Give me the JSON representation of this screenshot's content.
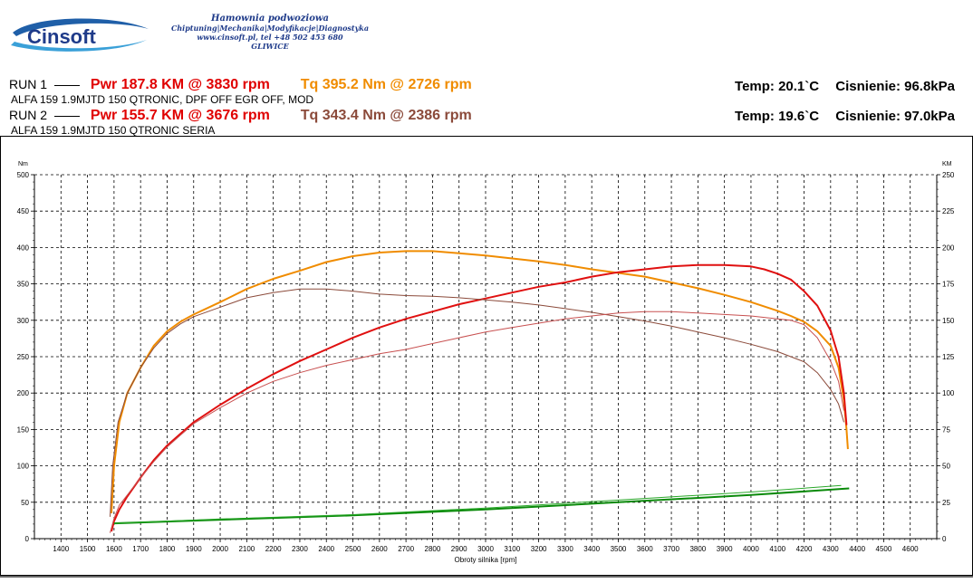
{
  "header": {
    "logo_text": "Cinsoft",
    "company_line1": "Hamownia podwoziowa",
    "company_line2": "Chiptuning|Mechanika|Modyfikacje|Diagnostyka",
    "company_line3": "www.cinsoft.pl, tel +48 502 453 680",
    "company_line4": "GLIWICE"
  },
  "runs": [
    {
      "label": "RUN 1",
      "pwr": "Pwr  187.8 KM @ 3830 rpm",
      "tq": "Tq 395.2 Nm @ 2726 rpm",
      "tq_color": "#f08c00",
      "car": "ALFA 159 1.9MJTD 150 QTRONIC, DPF OFF EGR OFF, MOD",
      "temp": "Temp: 20.1`C",
      "pressure": "Cisnienie: 96.8kPa"
    },
    {
      "label": "RUN 2",
      "pwr": "Pwr  155.7 KM @ 3676 rpm",
      "tq": "Tq 343.4 Nm @ 2386 rpm",
      "tq_color": "#8b4a3a",
      "car": "ALFA 159 1.9MJTD 150 QTRONIC SERIA",
      "temp": "Temp: 19.6`C",
      "pressure": "Cisnienie: 97.0kPa"
    }
  ],
  "chart_data": {
    "type": "line",
    "xlabel": "Obroty silnika [rpm]",
    "ylabel": "Nm",
    "y2label": "KM",
    "xlim": [
      1300,
      4700
    ],
    "ylim": [
      0,
      500
    ],
    "y2lim": [
      0,
      250
    ],
    "x_ticks": [
      1400,
      1500,
      1600,
      1700,
      1800,
      1900,
      2000,
      2100,
      2200,
      2300,
      2400,
      2500,
      2600,
      2700,
      2800,
      2900,
      3000,
      3100,
      3200,
      3300,
      3400,
      3500,
      3600,
      3700,
      3800,
      3900,
      4000,
      4100,
      4200,
      4300,
      4400,
      4500,
      4600
    ],
    "y_ticks": [
      0,
      50,
      100,
      150,
      200,
      250,
      300,
      350,
      400,
      450,
      500
    ],
    "y2_ticks": [
      0,
      25,
      50,
      75,
      100,
      125,
      150,
      175,
      200,
      225,
      250
    ],
    "grid": true,
    "series": [
      {
        "name": "RUN 1 Tq",
        "axis": "left",
        "color": "#f08c00",
        "width": 2,
        "points": [
          [
            1590,
            35
          ],
          [
            1600,
            100
          ],
          [
            1620,
            160
          ],
          [
            1650,
            200
          ],
          [
            1700,
            235
          ],
          [
            1750,
            265
          ],
          [
            1800,
            285
          ],
          [
            1850,
            298
          ],
          [
            1900,
            308
          ],
          [
            2000,
            325
          ],
          [
            2100,
            343
          ],
          [
            2200,
            357
          ],
          [
            2300,
            368
          ],
          [
            2400,
            380
          ],
          [
            2500,
            388
          ],
          [
            2600,
            393
          ],
          [
            2700,
            395
          ],
          [
            2800,
            395
          ],
          [
            2900,
            392
          ],
          [
            3000,
            389
          ],
          [
            3100,
            385
          ],
          [
            3200,
            381
          ],
          [
            3300,
            376
          ],
          [
            3400,
            370
          ],
          [
            3500,
            365
          ],
          [
            3600,
            360
          ],
          [
            3700,
            352
          ],
          [
            3800,
            344
          ],
          [
            3900,
            335
          ],
          [
            4000,
            325
          ],
          [
            4100,
            313
          ],
          [
            4150,
            306
          ],
          [
            4200,
            298
          ],
          [
            4250,
            285
          ],
          [
            4300,
            265
          ],
          [
            4330,
            235
          ],
          [
            4350,
            190
          ],
          [
            4360,
            150
          ],
          [
            4365,
            123
          ]
        ]
      },
      {
        "name": "RUN 1 Pwr",
        "axis": "right",
        "color": "#e01010",
        "width": 2,
        "points": [
          [
            1590,
            5
          ],
          [
            1600,
            12
          ],
          [
            1620,
            20
          ],
          [
            1650,
            29
          ],
          [
            1700,
            42
          ],
          [
            1750,
            54
          ],
          [
            1800,
            64
          ],
          [
            1850,
            72
          ],
          [
            1900,
            80
          ],
          [
            2000,
            92
          ],
          [
            2100,
            103
          ],
          [
            2200,
            113
          ],
          [
            2300,
            122
          ],
          [
            2400,
            130
          ],
          [
            2500,
            138
          ],
          [
            2600,
            145
          ],
          [
            2700,
            151
          ],
          [
            2800,
            156
          ],
          [
            2900,
            161
          ],
          [
            3000,
            165
          ],
          [
            3100,
            169
          ],
          [
            3200,
            173
          ],
          [
            3300,
            176
          ],
          [
            3400,
            180
          ],
          [
            3500,
            183
          ],
          [
            3600,
            185
          ],
          [
            3700,
            187
          ],
          [
            3800,
            188
          ],
          [
            3900,
            188
          ],
          [
            4000,
            187
          ],
          [
            4050,
            185
          ],
          [
            4100,
            182
          ],
          [
            4150,
            178
          ],
          [
            4200,
            170
          ],
          [
            4250,
            160
          ],
          [
            4300,
            143
          ],
          [
            4330,
            125
          ],
          [
            4350,
            100
          ],
          [
            4360,
            78
          ]
        ]
      },
      {
        "name": "RUN 2 Tq",
        "axis": "left",
        "color": "#8b4a3a",
        "width": 1,
        "points": [
          [
            1585,
            30
          ],
          [
            1595,
            100
          ],
          [
            1615,
            160
          ],
          [
            1650,
            200
          ],
          [
            1700,
            235
          ],
          [
            1750,
            262
          ],
          [
            1800,
            282
          ],
          [
            1850,
            295
          ],
          [
            1900,
            305
          ],
          [
            2000,
            318
          ],
          [
            2100,
            331
          ],
          [
            2200,
            338
          ],
          [
            2300,
            343
          ],
          [
            2400,
            343
          ],
          [
            2500,
            340
          ],
          [
            2600,
            336
          ],
          [
            2700,
            334
          ],
          [
            2800,
            333
          ],
          [
            2900,
            331
          ],
          [
            3000,
            328
          ],
          [
            3100,
            325
          ],
          [
            3200,
            321
          ],
          [
            3300,
            316
          ],
          [
            3400,
            311
          ],
          [
            3500,
            305
          ],
          [
            3600,
            299
          ],
          [
            3700,
            292
          ],
          [
            3800,
            284
          ],
          [
            3900,
            276
          ],
          [
            4000,
            267
          ],
          [
            4100,
            257
          ],
          [
            4200,
            243
          ],
          [
            4250,
            228
          ],
          [
            4300,
            205
          ],
          [
            4330,
            185
          ],
          [
            4350,
            160
          ]
        ]
      },
      {
        "name": "RUN 2 Pwr",
        "axis": "right",
        "color": "#c85050",
        "width": 1,
        "points": [
          [
            1585,
            4
          ],
          [
            1600,
            14
          ],
          [
            1620,
            23
          ],
          [
            1650,
            30
          ],
          [
            1700,
            42
          ],
          [
            1750,
            53
          ],
          [
            1800,
            63
          ],
          [
            1850,
            71
          ],
          [
            1900,
            79
          ],
          [
            2000,
            90
          ],
          [
            2100,
            100
          ],
          [
            2200,
            108
          ],
          [
            2300,
            114
          ],
          [
            2400,
            119
          ],
          [
            2500,
            123
          ],
          [
            2600,
            127
          ],
          [
            2700,
            130
          ],
          [
            2800,
            134
          ],
          [
            2900,
            138
          ],
          [
            3000,
            142
          ],
          [
            3100,
            145
          ],
          [
            3200,
            148
          ],
          [
            3300,
            151
          ],
          [
            3400,
            153
          ],
          [
            3500,
            155
          ],
          [
            3600,
            156
          ],
          [
            3700,
            156
          ],
          [
            3800,
            155
          ],
          [
            3900,
            154
          ],
          [
            4000,
            153
          ],
          [
            4100,
            151
          ],
          [
            4150,
            150
          ],
          [
            4200,
            147
          ],
          [
            4250,
            138
          ],
          [
            4300,
            122
          ],
          [
            4330,
            108
          ],
          [
            4350,
            88
          ]
        ]
      },
      {
        "name": "RUN 1 Loss",
        "axis": "left",
        "color": "#0a8a0a",
        "width": 2,
        "points": [
          [
            1600,
            21
          ],
          [
            2000,
            26
          ],
          [
            2500,
            32
          ],
          [
            3000,
            40
          ],
          [
            3500,
            50
          ],
          [
            4000,
            60
          ],
          [
            4370,
            69
          ]
        ]
      },
      {
        "name": "RUN 2 Loss",
        "axis": "left",
        "color": "#2aa82a",
        "width": 1,
        "points": [
          [
            1600,
            21
          ],
          [
            2000,
            27
          ],
          [
            2500,
            33
          ],
          [
            3000,
            42
          ],
          [
            3500,
            53
          ],
          [
            4000,
            64
          ],
          [
            4340,
            73
          ]
        ]
      }
    ]
  }
}
